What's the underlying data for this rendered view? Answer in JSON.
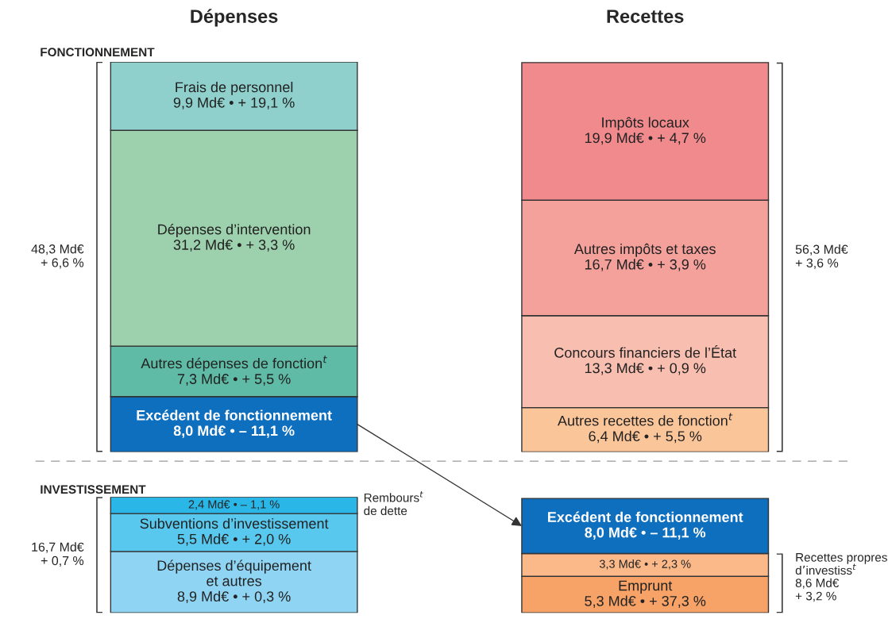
{
  "chart_data": [
    {
      "type": "bar",
      "stacked": true,
      "title": "FONCTIONNEMENT",
      "categories": [
        "Dépenses",
        "Recettes"
      ],
      "annotations": [
        "48,3 Md€\n+ 6,6 %",
        "56,3 Md€\n+ 3,6 %"
      ],
      "series": [
        {
          "name": "Excédent de fonctionnement",
          "color": "#0f6fbf",
          "values": [
            8.0,
            null
          ],
          "value_labels": [
            "8,0 Md€ • – 11,1 %",
            null
          ]
        },
        {
          "name": "Autres dépenses de fonction$^{t}$",
          "color": "#5fbba5",
          "values": [
            7.3,
            null
          ],
          "value_labels": [
            "7,3 Md€ • + 5,5 %",
            null
          ]
        },
        {
          "name": "Dépenses d’intervention",
          "color": "#9dd1ad",
          "values": [
            31.2,
            null
          ],
          "value_labels": [
            "31,2 Md€ • + 3,3 %",
            null
          ]
        },
        {
          "name": "Frais de personnel",
          "color": "#8fd0cc",
          "values": [
            9.9,
            null
          ],
          "value_labels": [
            "9,9 Md€ • + 19,1 %",
            null
          ]
        },
        {
          "name": "Autres recettes de fonction$^{t}$",
          "color": "#fbc59a",
          "values": [
            null,
            6.4
          ],
          "value_labels": [
            null,
            "6,4 Md€ • + 5,5 %"
          ]
        },
        {
          "name": "Concours financiers de l’État",
          "color": "#f8beb0",
          "values": [
            null,
            13.3
          ],
          "value_labels": [
            null,
            "13,3 Md€ • + 0,9 %"
          ]
        },
        {
          "name": "Autres impôts et taxes",
          "color": "#f4a19c",
          "values": [
            null,
            16.7
          ],
          "value_labels": [
            null,
            "16,7 Md€ • + 3,9 %"
          ]
        },
        {
          "name": "Impôts locaux",
          "color": "#f08a8d",
          "values": [
            null,
            19.9
          ],
          "value_labels": [
            null,
            "19,9 Md€ • + 4,7 %"
          ]
        }
      ]
    },
    {
      "type": "bar",
      "stacked": true,
      "title": "INVESTISSEMENT",
      "categories": [
        null,
        null
      ],
      "annotations": [
        "16,7 Md€\n+ 0,7 %",
        "8,6 Md€\n+ 3,2 %"
      ],
      "series": [
        {
          "name": "Dépenses d’équipement\net autres",
          "color": "#8fd4f3",
          "values": [
            8.9,
            null
          ],
          "value_labels": [
            "8,9 Md€ • + 0,3 %",
            null
          ]
        },
        {
          "name": "Subventions d’investissement",
          "color": "#59c8ee",
          "values": [
            5.5,
            null
          ],
          "value_labels": [
            "5,5 Md€ • + 2,0 %",
            null
          ]
        },
        {
          "name": "Rembours$^{t}$\nde dette",
          "color": "#2ab7e8",
          "values": [
            2.4,
            null
          ],
          "value_labels": [
            "2,4 Md€ • – 1,1 %",
            null
          ]
        },
        {
          "name": "Emprunt",
          "color": "#f7a266",
          "values": [
            null,
            5.3
          ],
          "value_labels": [
            null,
            "5,3 Md€ • + 37,3 %"
          ]
        },
        {
          "name": "Recettes propres\nd’investiss$^{t}$",
          "color": "#fbb98a",
          "values": [
            null,
            3.3
          ],
          "value_labels": [
            null,
            "3,3 Md€ • + 2,3 %"
          ]
        },
        {
          "name": "Excédent de fonctionnement",
          "color": "#0f6fbf",
          "values": [
            null,
            8.0
          ],
          "value_labels": [
            null,
            "8,0 Md€ • – 11,1 %"
          ]
        }
      ]
    }
  ]
}
